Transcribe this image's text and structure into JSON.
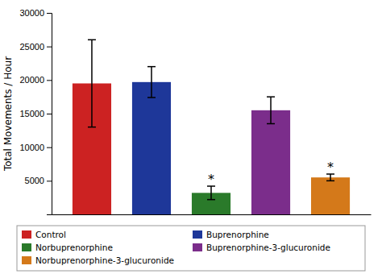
{
  "chart_data": {
    "type": "bar",
    "categories": [
      "Control",
      "Buprenorphine",
      "Norbuprenorphine",
      "Buprenorphine-3-glucuronide",
      "Norbuprenorphine-3-glucuronide"
    ],
    "values": [
      19500,
      19700,
      3200,
      15500,
      5500
    ],
    "errors": [
      6500,
      2300,
      1000,
      2000,
      500
    ],
    "colors": [
      "#cc2222",
      "#1e3799",
      "#2a7a2a",
      "#7b2d8b",
      "#d4791a"
    ],
    "ylabel": "Total Movements / Hour",
    "ylim": [
      0,
      30000
    ],
    "yticks": [
      5000,
      10000,
      15000,
      20000,
      25000,
      30000
    ],
    "annotations": [
      {
        "category": "Norbuprenorphine",
        "text": "*"
      },
      {
        "category": "Norbuprenorphine-3-glucuronide",
        "text": "*"
      }
    ],
    "legend": "bottom",
    "tick_labels": "y",
    "grid": false
  }
}
